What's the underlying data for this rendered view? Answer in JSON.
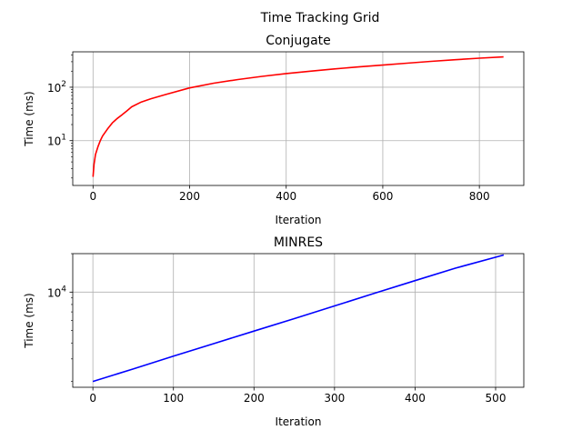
{
  "figure": {
    "suptitle": "Time Tracking Grid"
  },
  "chart_data": [
    {
      "type": "line",
      "title": "Conjugate",
      "xlabel": "Iteration",
      "ylabel": "Time (ms)",
      "yscale": "log",
      "xlim": [
        -42,
        892
      ],
      "ylim": [
        1.45,
        460
      ],
      "xticks": [
        0,
        200,
        400,
        600,
        800
      ],
      "yticks": [
        10,
        100
      ],
      "yticklabels": [
        {
          "base": "10",
          "exp": "1"
        },
        {
          "base": "10",
          "exp": "2"
        }
      ],
      "grid": true,
      "color": "#ff0000",
      "x": [
        0,
        2,
        5,
        10,
        15,
        20,
        30,
        40,
        50,
        60,
        70,
        80,
        100,
        120,
        150,
        200,
        250,
        300,
        350,
        400,
        450,
        500,
        550,
        600,
        650,
        700,
        750,
        800,
        850
      ],
      "y": [
        2.1,
        3.6,
        5.5,
        7.6,
        10.0,
        12.3,
        16.5,
        21.5,
        26.0,
        30.5,
        36.0,
        43.0,
        53.0,
        61.0,
        73.0,
        97.0,
        119.0,
        139.0,
        160.0,
        180.0,
        200.0,
        220.0,
        240.0,
        260.0,
        282.0,
        305.0,
        327.0,
        349.0,
        370.0
      ]
    },
    {
      "type": "line",
      "title": "MINRES",
      "xlabel": "Iteration",
      "ylabel": "Time (ms)",
      "yscale": "log",
      "xlim": [
        -25,
        535
      ],
      "ylim": [
        1800,
        20000
      ],
      "xticks": [
        0,
        100,
        200,
        300,
        400,
        500
      ],
      "yticks": [
        10000
      ],
      "yticklabels": [
        {
          "base": "10",
          "exp": "4"
        }
      ],
      "grid": true,
      "color": "#0000ff",
      "x": [
        0,
        50,
        100,
        150,
        200,
        250,
        300,
        350,
        400,
        450,
        510
      ],
      "y": [
        2000,
        2500,
        3150,
        3950,
        4950,
        6200,
        7800,
        9800,
        12300,
        15400,
        19500
      ]
    }
  ]
}
